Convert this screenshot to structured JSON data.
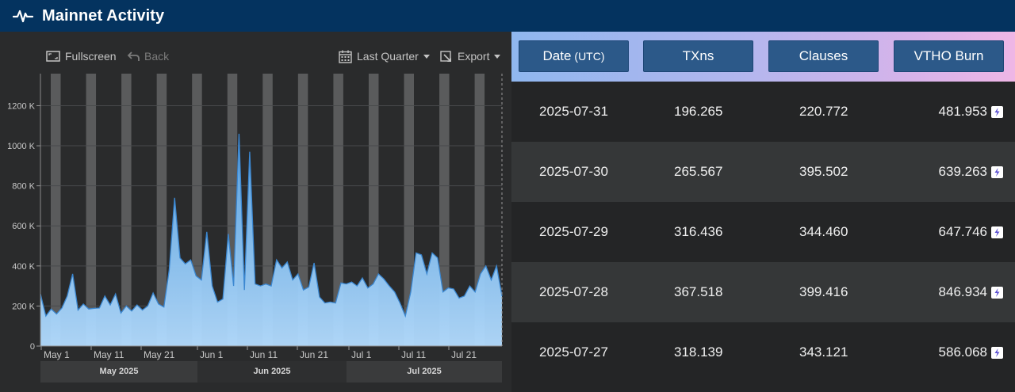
{
  "header": {
    "title": "Mainnet Activity",
    "icon": "pulse-icon"
  },
  "toolbar": {
    "fullscreen_label": "Fullscreen",
    "back_label": "Back",
    "range_label": "Last Quarter",
    "export_label": "Export"
  },
  "chart_data": {
    "type": "area",
    "x_range": [
      "2025-04-30",
      "2025-07-31"
    ],
    "y_ticks": [
      "0",
      "200 K",
      "400 K",
      "600 K",
      "800 K",
      "1000 K",
      "1200 K"
    ],
    "ylim": [
      0,
      1360000
    ],
    "x_ticks": [
      "May 1",
      "May 11",
      "May 21",
      "Jun 1",
      "Jun 11",
      "Jun 21",
      "Jul 1",
      "Jul 11",
      "Jul 21"
    ],
    "months": [
      "May 2025",
      "Jun 2025",
      "Jul 2025"
    ],
    "weekend_band_count": 13,
    "colors": {
      "area_top": "#5ba7e8",
      "area_bottom": "#b3dcff",
      "line": "#3b87d1",
      "band": "#5a5b5c"
    },
    "values": [
      260000,
      150000,
      185000,
      160000,
      190000,
      250000,
      360000,
      180000,
      210000,
      185000,
      188000,
      190000,
      250000,
      205000,
      260000,
      165000,
      200000,
      175000,
      205000,
      180000,
      200000,
      265000,
      210000,
      195000,
      380000,
      740000,
      440000,
      410000,
      430000,
      350000,
      330000,
      570000,
      300000,
      220000,
      235000,
      560000,
      300000,
      1060000,
      280000,
      970000,
      310000,
      300000,
      310000,
      300000,
      430000,
      390000,
      420000,
      330000,
      360000,
      280000,
      295000,
      415000,
      245000,
      215000,
      220000,
      215000,
      315000,
      310000,
      320000,
      300000,
      340000,
      290000,
      310000,
      360000,
      335000,
      300000,
      270000,
      215000,
      150000,
      270000,
      465000,
      455000,
      360000,
      465000,
      440000,
      270000,
      290000,
      285000,
      240000,
      250000,
      300000,
      270000,
      360000,
      400000,
      330000,
      400000,
      250000
    ]
  },
  "table": {
    "columns": [
      "Date",
      "TXns",
      "Clauses",
      "VTHO Burn"
    ],
    "date_suffix": "(UTC)",
    "rows": [
      {
        "date": "2025-07-31",
        "txns": "196.265",
        "clauses": "220.772",
        "burn": "481.953"
      },
      {
        "date": "2025-07-30",
        "txns": "265.567",
        "clauses": "395.502",
        "burn": "639.263"
      },
      {
        "date": "2025-07-29",
        "txns": "316.436",
        "clauses": "344.460",
        "burn": "647.746"
      },
      {
        "date": "2025-07-28",
        "txns": "367.518",
        "clauses": "399.416",
        "burn": "846.934"
      },
      {
        "date": "2025-07-27",
        "txns": "318.139",
        "clauses": "343.121",
        "burn": "586.068"
      }
    ]
  }
}
